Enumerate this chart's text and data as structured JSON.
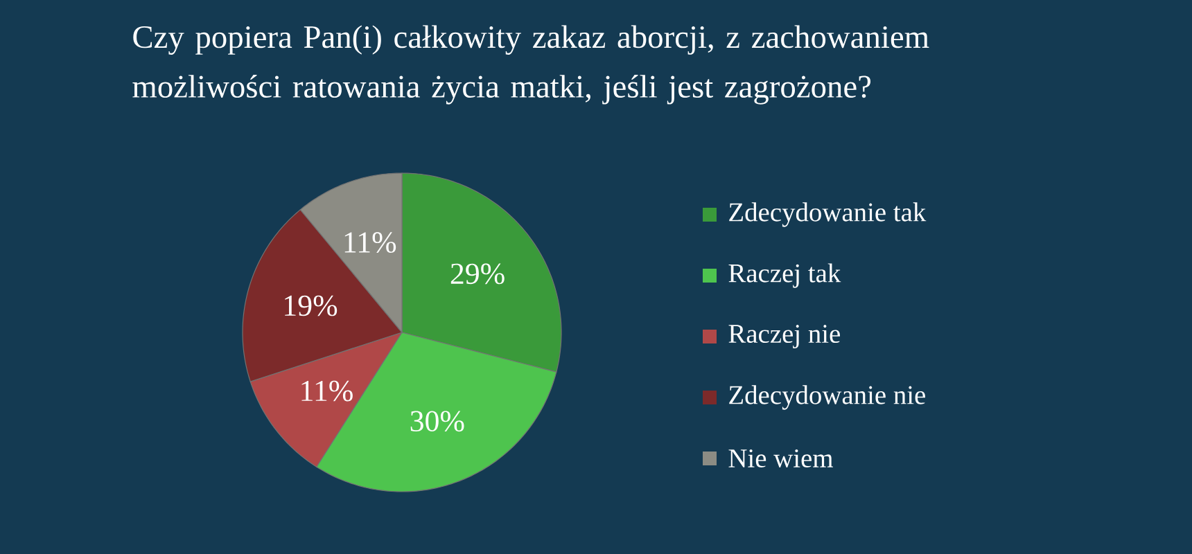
{
  "chart_data": {
    "type": "pie",
    "title": "Czy popiera Pan(i) całkowity zakaz aborcji, z zachowaniem możliwości ratowania życia matki, jeśli jest zagrożone?",
    "categories": [
      "Zdecydowanie tak",
      "Raczej tak",
      "Raczej nie",
      "Zdecydowanie nie",
      "Nie wiem"
    ],
    "values": [
      29,
      30,
      11,
      19,
      11
    ],
    "value_labels": [
      "29%",
      "30%",
      "11%",
      "19%",
      "11%"
    ],
    "colors": [
      "#3a9a3a",
      "#4ec44e",
      "#b04848",
      "#7c2a2a",
      "#8c8c84"
    ],
    "legend": "right"
  }
}
